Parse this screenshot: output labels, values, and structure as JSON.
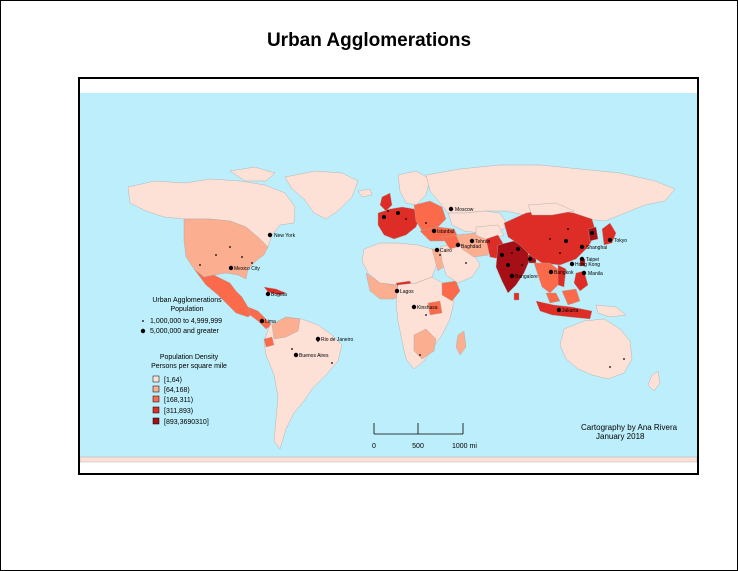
{
  "title": "Urban Agglomerations",
  "colors": {
    "ocean": "#bdeefb",
    "density": [
      "#fde0d6",
      "#fcae91",
      "#fb6a4a",
      "#de2d26",
      "#a50f15"
    ],
    "border": "#999999",
    "city": "#000000"
  },
  "cities": [
    {
      "name": "Moscow"
    },
    {
      "name": "New York"
    },
    {
      "name": "Tokyo"
    },
    {
      "name": "Shanghai"
    },
    {
      "name": "Taipei"
    },
    {
      "name": "Hong Kong"
    },
    {
      "name": "Manila"
    },
    {
      "name": "Bangkok"
    },
    {
      "name": "Jakarta"
    },
    {
      "name": "Bangalore"
    },
    {
      "name": "Tehran"
    },
    {
      "name": "Baghdad"
    },
    {
      "name": "Istanbul"
    },
    {
      "name": "Cairo"
    },
    {
      "name": "Lagos"
    },
    {
      "name": "Kinshasa"
    },
    {
      "name": "Mexico City"
    },
    {
      "name": "Bogota"
    },
    {
      "name": "Lima"
    },
    {
      "name": "Rio de Janeiro"
    },
    {
      "name": "Buenos Aires"
    }
  ],
  "legend": {
    "population_title": "Urban Agglomerations",
    "population_subtitle": "Population",
    "population_classes": [
      "1,000,000 to 4,999,999",
      "5,000,000 and greater"
    ],
    "density_title": "Population Density",
    "density_subtitle": "Persons per square mile",
    "density_classes": [
      "[1,64)",
      "[64,168)",
      "[168,311)",
      "[311,893)",
      "[893,3690310]"
    ]
  },
  "scale_bar": {
    "labels": [
      "0",
      "500",
      "1000 mi"
    ]
  },
  "credit": {
    "line1": "Cartography by Ana Rivera",
    "line2": "January 2018"
  }
}
